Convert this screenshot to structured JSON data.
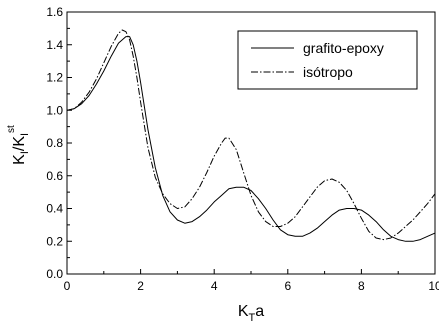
{
  "chart_data": {
    "type": "line",
    "xlabel": {
      "main": "K",
      "sub": "T",
      "tail": "a"
    },
    "ylabel": {
      "main": "K",
      "sub1": "I",
      "mid": "/K",
      "sub2": "I",
      "sup": "st"
    },
    "xlim": [
      0,
      10
    ],
    "ylim": [
      0,
      1.6
    ],
    "xticks": [
      0,
      2,
      4,
      6,
      8,
      10
    ],
    "yticks": [
      0.0,
      0.2,
      0.4,
      0.6,
      0.8,
      1.0,
      1.2,
      1.4,
      1.6
    ],
    "ytick_labels": [
      "0.0",
      "0.2",
      "0.4",
      "0.6",
      "0.8",
      "1.0",
      "1.2",
      "1.4",
      "1.6"
    ],
    "grid": false,
    "legend_position": "top-right",
    "series": [
      {
        "name": "grafito-epoxy",
        "style": "solid",
        "color": "#000000",
        "points": [
          [
            0,
            1.0
          ],
          [
            0.2,
            1.01
          ],
          [
            0.4,
            1.04
          ],
          [
            0.6,
            1.09
          ],
          [
            0.8,
            1.16
          ],
          [
            1.0,
            1.24
          ],
          [
            1.2,
            1.33
          ],
          [
            1.4,
            1.41
          ],
          [
            1.6,
            1.45
          ],
          [
            1.7,
            1.45
          ],
          [
            1.8,
            1.4
          ],
          [
            1.9,
            1.3
          ],
          [
            2.0,
            1.17
          ],
          [
            2.2,
            0.88
          ],
          [
            2.4,
            0.65
          ],
          [
            2.6,
            0.48
          ],
          [
            2.8,
            0.38
          ],
          [
            3.0,
            0.33
          ],
          [
            3.2,
            0.31
          ],
          [
            3.4,
            0.32
          ],
          [
            3.6,
            0.35
          ],
          [
            3.8,
            0.39
          ],
          [
            4.0,
            0.44
          ],
          [
            4.2,
            0.48
          ],
          [
            4.4,
            0.52
          ],
          [
            4.6,
            0.53
          ],
          [
            4.8,
            0.53
          ],
          [
            5.0,
            0.51
          ],
          [
            5.2,
            0.46
          ],
          [
            5.4,
            0.4
          ],
          [
            5.6,
            0.33
          ],
          [
            5.8,
            0.27
          ],
          [
            6.0,
            0.24
          ],
          [
            6.2,
            0.23
          ],
          [
            6.4,
            0.23
          ],
          [
            6.6,
            0.25
          ],
          [
            6.8,
            0.28
          ],
          [
            7.0,
            0.32
          ],
          [
            7.2,
            0.36
          ],
          [
            7.4,
            0.39
          ],
          [
            7.6,
            0.4
          ],
          [
            7.8,
            0.4
          ],
          [
            8.0,
            0.39
          ],
          [
            8.2,
            0.36
          ],
          [
            8.4,
            0.32
          ],
          [
            8.6,
            0.27
          ],
          [
            8.8,
            0.23
          ],
          [
            9.0,
            0.21
          ],
          [
            9.2,
            0.2
          ],
          [
            9.4,
            0.2
          ],
          [
            9.6,
            0.21
          ],
          [
            9.8,
            0.23
          ],
          [
            10.0,
            0.25
          ]
        ]
      },
      {
        "name": "isótropo",
        "style": "dashdot",
        "color": "#000000",
        "points": [
          [
            0,
            1.0
          ],
          [
            0.2,
            1.01
          ],
          [
            0.4,
            1.05
          ],
          [
            0.6,
            1.11
          ],
          [
            0.8,
            1.19
          ],
          [
            1.0,
            1.29
          ],
          [
            1.2,
            1.39
          ],
          [
            1.4,
            1.47
          ],
          [
            1.5,
            1.49
          ],
          [
            1.6,
            1.48
          ],
          [
            1.7,
            1.43
          ],
          [
            1.8,
            1.33
          ],
          [
            1.9,
            1.2
          ],
          [
            2.0,
            1.05
          ],
          [
            2.2,
            0.77
          ],
          [
            2.4,
            0.59
          ],
          [
            2.6,
            0.49
          ],
          [
            2.8,
            0.43
          ],
          [
            3.0,
            0.4
          ],
          [
            3.2,
            0.41
          ],
          [
            3.4,
            0.46
          ],
          [
            3.6,
            0.53
          ],
          [
            3.8,
            0.62
          ],
          [
            4.0,
            0.72
          ],
          [
            4.2,
            0.8
          ],
          [
            4.3,
            0.83
          ],
          [
            4.4,
            0.83
          ],
          [
            4.6,
            0.76
          ],
          [
            4.8,
            0.62
          ],
          [
            5.0,
            0.48
          ],
          [
            5.2,
            0.38
          ],
          [
            5.4,
            0.32
          ],
          [
            5.6,
            0.29
          ],
          [
            5.8,
            0.29
          ],
          [
            6.0,
            0.31
          ],
          [
            6.2,
            0.35
          ],
          [
            6.4,
            0.41
          ],
          [
            6.6,
            0.47
          ],
          [
            6.8,
            0.53
          ],
          [
            7.0,
            0.57
          ],
          [
            7.2,
            0.58
          ],
          [
            7.4,
            0.56
          ],
          [
            7.6,
            0.51
          ],
          [
            7.8,
            0.43
          ],
          [
            8.0,
            0.34
          ],
          [
            8.2,
            0.26
          ],
          [
            8.4,
            0.22
          ],
          [
            8.6,
            0.21
          ],
          [
            8.8,
            0.22
          ],
          [
            9.0,
            0.25
          ],
          [
            9.2,
            0.29
          ],
          [
            9.4,
            0.33
          ],
          [
            9.6,
            0.38
          ],
          [
            9.8,
            0.43
          ],
          [
            10.0,
            0.49
          ]
        ]
      }
    ]
  }
}
